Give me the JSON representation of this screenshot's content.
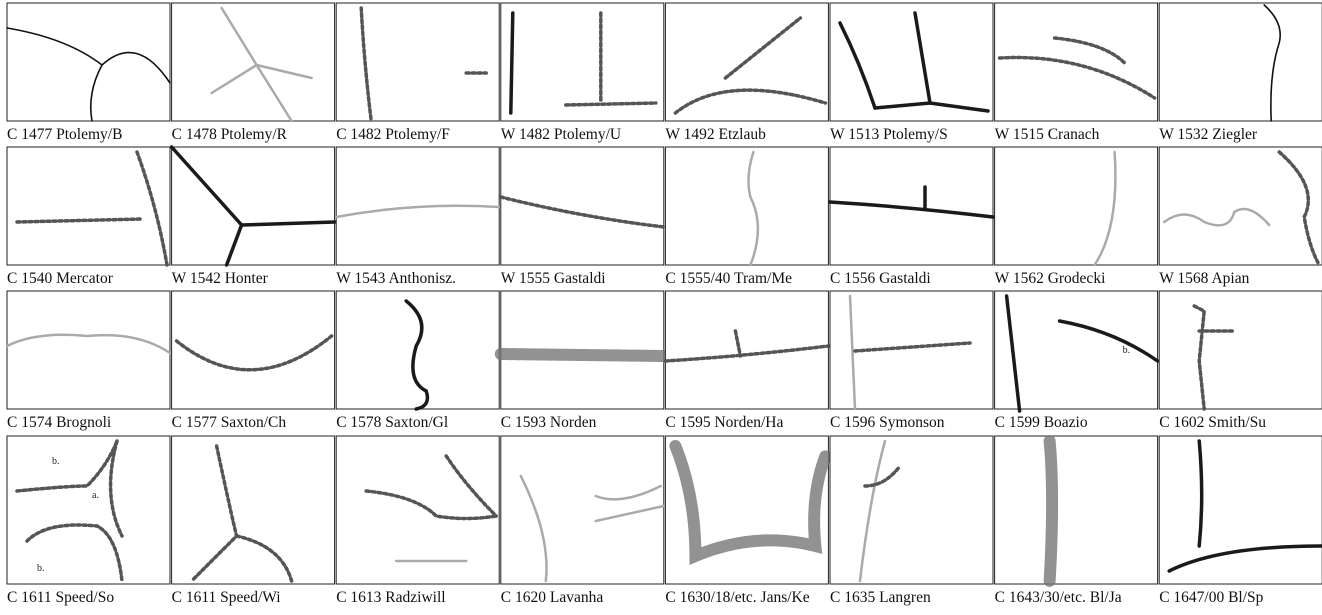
{
  "figure": {
    "items": [
      {
        "caption": "C 1477 Ptolemy/B"
      },
      {
        "caption": "C 1478 Ptolemy/R"
      },
      {
        "caption": "C 1482 Ptolemy/F"
      },
      {
        "caption": "W 1482 Ptolemy/U"
      },
      {
        "caption": "W 1492 Etzlaub"
      },
      {
        "caption": "W 1513 Ptolemy/S"
      },
      {
        "caption": "W 1515 Cranach"
      },
      {
        "caption": "W 1532 Ziegler"
      },
      {
        "caption": "C 1540 Mercator"
      },
      {
        "caption": "W 1542 Honter"
      },
      {
        "caption": "W 1543 Anthonisz."
      },
      {
        "caption": "W 1555 Gastaldi"
      },
      {
        "caption": "C 1555/40 Tram/Me"
      },
      {
        "caption": "C 1556 Gastaldi"
      },
      {
        "caption": "W 1562 Grodecki"
      },
      {
        "caption": "W 1568 Apian"
      },
      {
        "caption": "C 1574 Brognoli"
      },
      {
        "caption": "C 1577 Saxton/Ch"
      },
      {
        "caption": "C 1578 Saxton/Gl"
      },
      {
        "caption": "C 1593 Norden"
      },
      {
        "caption": "C 1595 Norden/Ha"
      },
      {
        "caption": "C 1596 Symonson"
      },
      {
        "caption": "C 1599 Boazio",
        "labels": [
          "b."
        ]
      },
      {
        "caption": "C 1602 Smith/Su"
      },
      {
        "caption": "C 1611 Speed/So",
        "labels": [
          "b.",
          "a.",
          "b."
        ]
      },
      {
        "caption": "C 1611 Speed/Wi"
      },
      {
        "caption": "C 1613 Radziwill"
      },
      {
        "caption": "C 1620 Lavanha"
      },
      {
        "caption": "C 1630/18/etc. Jans/Ke"
      },
      {
        "caption": "C 1635 Langren"
      },
      {
        "caption": "C 1643/30/etc. Bl/Ja"
      },
      {
        "caption": "C 1647/00 Bl/Sp"
      }
    ]
  }
}
